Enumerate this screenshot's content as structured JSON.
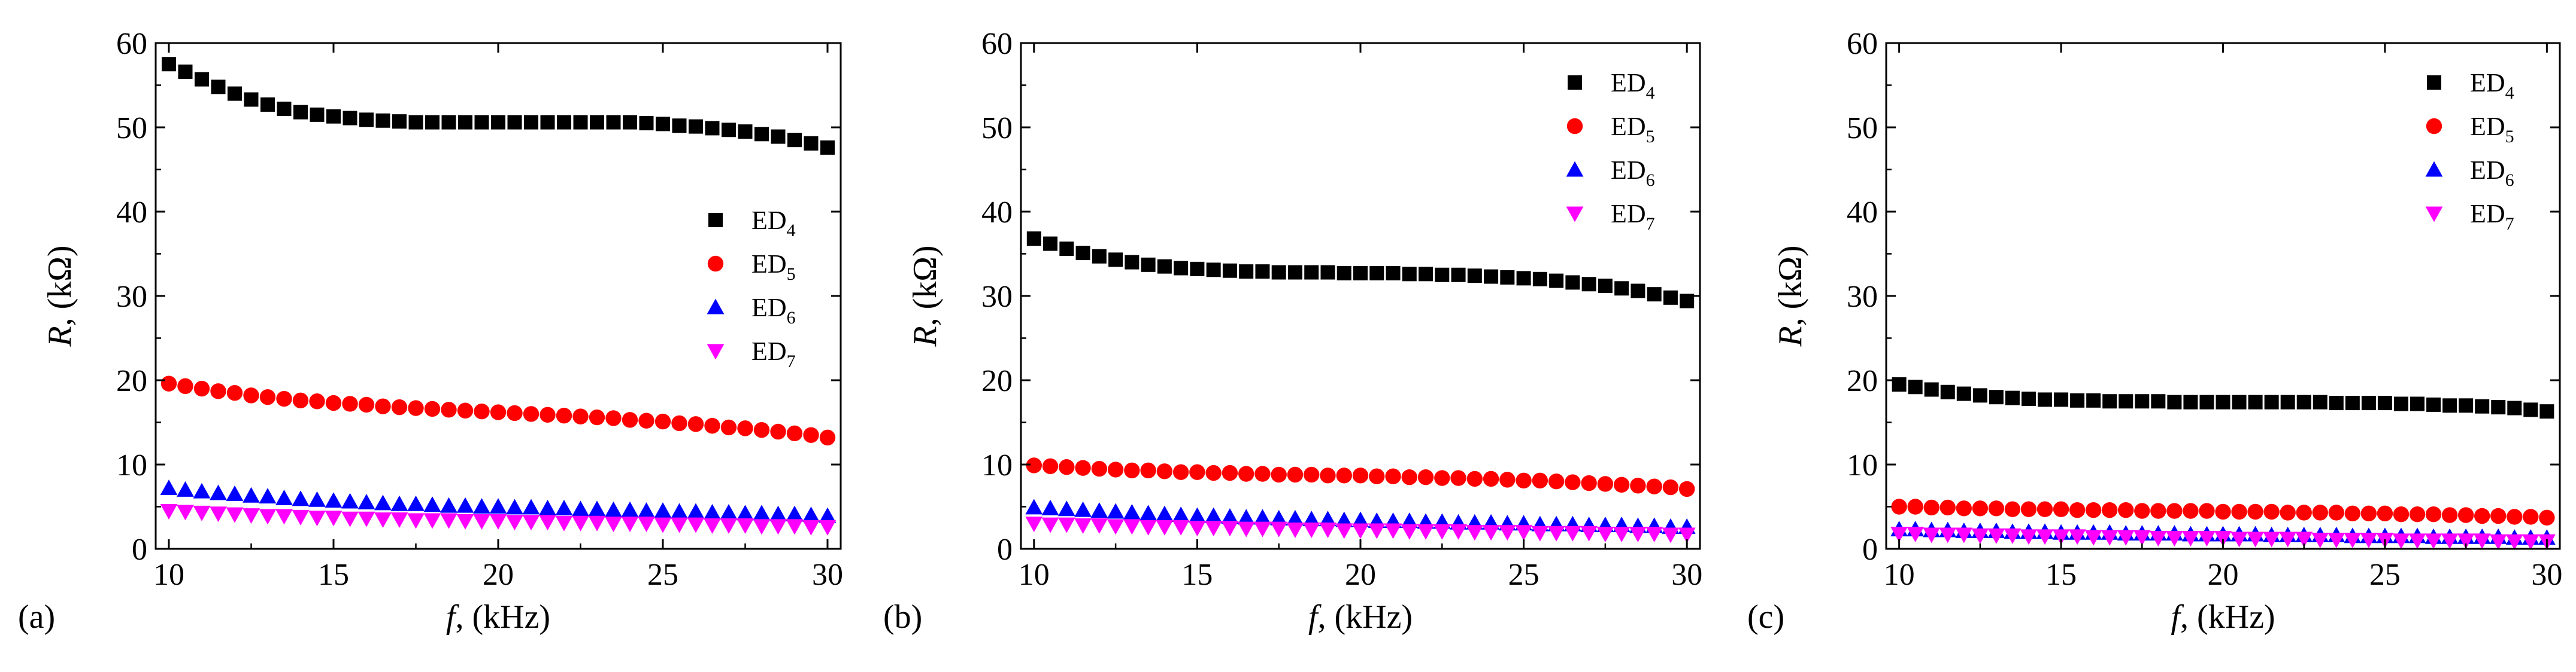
{
  "chart_data": [
    {
      "type": "scatter",
      "panel_label": "(a)",
      "xlabel": {
        "var": "f",
        "rest": ", (kHz)"
      },
      "ylabel": {
        "var": "R",
        "rest": ", (kΩ)"
      },
      "xlim": [
        9.6,
        30.4
      ],
      "ylim": [
        0,
        60
      ],
      "xticks": [
        10,
        15,
        20,
        25,
        30
      ],
      "yticks": [
        0,
        10,
        20,
        30,
        40,
        50,
        60
      ],
      "legend_position": "center-right",
      "x": [
        10,
        10.5,
        11,
        11.5,
        12,
        12.5,
        13,
        13.5,
        14,
        14.5,
        15,
        15.5,
        16,
        16.5,
        17,
        17.5,
        18,
        18.5,
        19,
        19.5,
        20,
        20.5,
        21,
        21.5,
        22,
        22.5,
        23,
        23.5,
        24,
        24.5,
        25,
        25.5,
        26,
        26.5,
        27,
        27.5,
        28,
        28.5,
        29,
        29.5,
        30
      ],
      "series": [
        {
          "name": "ED",
          "sub": "4",
          "marker": "square",
          "color": "#000000",
          "values": [
            57.5,
            56.6,
            55.7,
            54.8,
            54.0,
            53.3,
            52.7,
            52.2,
            51.8,
            51.5,
            51.3,
            51.1,
            50.9,
            50.8,
            50.7,
            50.6,
            50.6,
            50.6,
            50.6,
            50.6,
            50.6,
            50.6,
            50.6,
            50.6,
            50.6,
            50.6,
            50.6,
            50.6,
            50.6,
            50.5,
            50.4,
            50.2,
            50.1,
            49.9,
            49.7,
            49.5,
            49.2,
            48.9,
            48.5,
            48.1,
            47.6
          ]
        },
        {
          "name": "ED",
          "sub": "5",
          "marker": "circle",
          "color": "#ff0000",
          "values": [
            19.6,
            19.3,
            19.0,
            18.7,
            18.5,
            18.2,
            18.0,
            17.8,
            17.6,
            17.5,
            17.3,
            17.2,
            17.1,
            16.9,
            16.8,
            16.7,
            16.6,
            16.5,
            16.4,
            16.3,
            16.2,
            16.1,
            16.0,
            15.9,
            15.8,
            15.7,
            15.6,
            15.5,
            15.3,
            15.2,
            15.1,
            14.9,
            14.8,
            14.6,
            14.4,
            14.3,
            14.1,
            13.9,
            13.7,
            13.5,
            13.2
          ]
        },
        {
          "name": "ED",
          "sub": "6",
          "marker": "triangle-up",
          "color": "#0000ff",
          "values": [
            7.2,
            7.0,
            6.8,
            6.6,
            6.5,
            6.3,
            6.2,
            6.0,
            5.9,
            5.8,
            5.7,
            5.6,
            5.5,
            5.4,
            5.3,
            5.3,
            5.2,
            5.1,
            5.1,
            5.0,
            5.0,
            4.9,
            4.9,
            4.8,
            4.8,
            4.7,
            4.7,
            4.6,
            4.6,
            4.5,
            4.5,
            4.4,
            4.4,
            4.3,
            4.3,
            4.2,
            4.2,
            4.1,
            4.1,
            4.0,
            3.9
          ]
        },
        {
          "name": "ED",
          "sub": "7",
          "marker": "triangle-down",
          "color": "#ff00ff",
          "values": [
            4.5,
            4.4,
            4.3,
            4.2,
            4.1,
            4.0,
            3.9,
            3.9,
            3.8,
            3.7,
            3.7,
            3.6,
            3.6,
            3.5,
            3.5,
            3.4,
            3.4,
            3.4,
            3.3,
            3.3,
            3.3,
            3.2,
            3.2,
            3.2,
            3.1,
            3.1,
            3.1,
            3.0,
            3.0,
            3.0,
            2.9,
            2.9,
            2.9,
            2.8,
            2.8,
            2.8,
            2.7,
            2.7,
            2.7,
            2.6,
            2.6
          ]
        }
      ]
    },
    {
      "type": "scatter",
      "panel_label": "(b)",
      "xlabel": {
        "var": "f",
        "rest": ", (kHz)"
      },
      "ylabel": {
        "var": "R",
        "rest": ", (kΩ)"
      },
      "xlim": [
        9.6,
        30.4
      ],
      "ylim": [
        0,
        60
      ],
      "xticks": [
        10,
        15,
        20,
        25,
        30
      ],
      "yticks": [
        0,
        10,
        20,
        30,
        40,
        50,
        60
      ],
      "legend_position": "top-right",
      "x": [
        10,
        10.5,
        11,
        11.5,
        12,
        12.5,
        13,
        13.5,
        14,
        14.5,
        15,
        15.5,
        16,
        16.5,
        17,
        17.5,
        18,
        18.5,
        19,
        19.5,
        20,
        20.5,
        21,
        21.5,
        22,
        22.5,
        23,
        23.5,
        24,
        24.5,
        25,
        25.5,
        26,
        26.5,
        27,
        27.5,
        28,
        28.5,
        29,
        29.5,
        30
      ],
      "series": [
        {
          "name": "ED",
          "sub": "4",
          "marker": "square",
          "color": "#000000",
          "values": [
            36.8,
            36.2,
            35.6,
            35.1,
            34.7,
            34.3,
            34.0,
            33.7,
            33.5,
            33.3,
            33.2,
            33.1,
            33.0,
            32.9,
            32.9,
            32.8,
            32.8,
            32.8,
            32.8,
            32.7,
            32.7,
            32.7,
            32.7,
            32.6,
            32.6,
            32.5,
            32.5,
            32.4,
            32.3,
            32.2,
            32.1,
            32.0,
            31.8,
            31.6,
            31.4,
            31.2,
            30.9,
            30.6,
            30.2,
            29.8,
            29.4
          ]
        },
        {
          "name": "ED",
          "sub": "5",
          "marker": "circle",
          "color": "#ff0000",
          "values": [
            9.9,
            9.8,
            9.7,
            9.6,
            9.5,
            9.4,
            9.3,
            9.3,
            9.2,
            9.1,
            9.1,
            9.0,
            9.0,
            8.9,
            8.9,
            8.8,
            8.8,
            8.8,
            8.7,
            8.7,
            8.7,
            8.6,
            8.6,
            8.5,
            8.5,
            8.4,
            8.4,
            8.3,
            8.3,
            8.2,
            8.1,
            8.1,
            8.0,
            7.9,
            7.8,
            7.7,
            7.6,
            7.5,
            7.4,
            7.3,
            7.1
          ]
        },
        {
          "name": "ED",
          "sub": "6",
          "marker": "triangle-up",
          "color": "#0000ff",
          "values": [
            4.9,
            4.8,
            4.7,
            4.6,
            4.5,
            4.4,
            4.3,
            4.2,
            4.1,
            4.0,
            3.9,
            3.9,
            3.8,
            3.7,
            3.7,
            3.6,
            3.6,
            3.5,
            3.5,
            3.4,
            3.4,
            3.3,
            3.3,
            3.3,
            3.2,
            3.2,
            3.1,
            3.1,
            3.1,
            3.0,
            3.0,
            2.9,
            2.9,
            2.9,
            2.8,
            2.8,
            2.8,
            2.7,
            2.7,
            2.6,
            2.6
          ]
        },
        {
          "name": "ED",
          "sub": "7",
          "marker": "triangle-down",
          "color": "#ff00ff",
          "values": [
            3.0,
            2.9,
            2.9,
            2.8,
            2.8,
            2.7,
            2.7,
            2.6,
            2.6,
            2.6,
            2.5,
            2.5,
            2.5,
            2.4,
            2.4,
            2.4,
            2.3,
            2.3,
            2.3,
            2.2,
            2.2,
            2.2,
            2.2,
            2.1,
            2.1,
            2.1,
            2.1,
            2.0,
            2.0,
            2.0,
            2.0,
            1.9,
            1.9,
            1.9,
            1.9,
            1.8,
            1.8,
            1.8,
            1.8,
            1.7,
            1.7
          ]
        }
      ]
    },
    {
      "type": "scatter",
      "panel_label": "(c)",
      "xlabel": {
        "var": "f",
        "rest": ", (kHz)"
      },
      "ylabel": {
        "var": "R",
        "rest": ", (kΩ)"
      },
      "xlim": [
        9.6,
        30.4
      ],
      "ylim": [
        0,
        60
      ],
      "xticks": [
        10,
        15,
        20,
        25,
        30
      ],
      "yticks": [
        0,
        10,
        20,
        30,
        40,
        50,
        60
      ],
      "legend_position": "top-right",
      "x": [
        10,
        10.5,
        11,
        11.5,
        12,
        12.5,
        13,
        13.5,
        14,
        14.5,
        15,
        15.5,
        16,
        16.5,
        17,
        17.5,
        18,
        18.5,
        19,
        19.5,
        20,
        20.5,
        21,
        21.5,
        22,
        22.5,
        23,
        23.5,
        24,
        24.5,
        25,
        25.5,
        26,
        26.5,
        27,
        27.5,
        28,
        28.5,
        29,
        29.5,
        30
      ],
      "series": [
        {
          "name": "ED",
          "sub": "4",
          "marker": "square",
          "color": "#000000",
          "values": [
            19.5,
            19.2,
            18.9,
            18.6,
            18.4,
            18.2,
            18.0,
            17.9,
            17.8,
            17.7,
            17.7,
            17.6,
            17.6,
            17.5,
            17.5,
            17.5,
            17.5,
            17.4,
            17.4,
            17.4,
            17.4,
            17.4,
            17.4,
            17.4,
            17.4,
            17.4,
            17.4,
            17.3,
            17.3,
            17.3,
            17.3,
            17.2,
            17.2,
            17.1,
            17.0,
            17.0,
            16.9,
            16.8,
            16.7,
            16.5,
            16.3
          ]
        },
        {
          "name": "ED",
          "sub": "5",
          "marker": "circle",
          "color": "#ff0000",
          "values": [
            5.0,
            5.0,
            4.9,
            4.9,
            4.8,
            4.8,
            4.8,
            4.7,
            4.7,
            4.7,
            4.7,
            4.6,
            4.6,
            4.6,
            4.6,
            4.5,
            4.5,
            4.5,
            4.5,
            4.5,
            4.4,
            4.4,
            4.4,
            4.4,
            4.3,
            4.3,
            4.3,
            4.3,
            4.2,
            4.2,
            4.2,
            4.1,
            4.1,
            4.1,
            4.0,
            4.0,
            3.9,
            3.9,
            3.8,
            3.8,
            3.7
          ]
        },
        {
          "name": "ED",
          "sub": "6",
          "marker": "triangle-up",
          "color": "#0000ff",
          "values": [
            2.3,
            2.3,
            2.2,
            2.2,
            2.1,
            2.1,
            2.1,
            2.0,
            2.0,
            2.0,
            1.9,
            1.9,
            1.9,
            1.9,
            1.8,
            1.8,
            1.8,
            1.8,
            1.7,
            1.7,
            1.7,
            1.7,
            1.7,
            1.6,
            1.6,
            1.6,
            1.6,
            1.6,
            1.5,
            1.5,
            1.5,
            1.5,
            1.5,
            1.4,
            1.4,
            1.4,
            1.4,
            1.4,
            1.3,
            1.3,
            1.3
          ]
        },
        {
          "name": "ED",
          "sub": "7",
          "marker": "triangle-down",
          "color": "#ff00ff",
          "values": [
            1.8,
            1.8,
            1.7,
            1.7,
            1.7,
            1.6,
            1.6,
            1.6,
            1.5,
            1.5,
            1.5,
            1.5,
            1.4,
            1.4,
            1.4,
            1.4,
            1.3,
            1.3,
            1.3,
            1.3,
            1.3,
            1.2,
            1.2,
            1.2,
            1.2,
            1.2,
            1.1,
            1.1,
            1.1,
            1.1,
            1.1,
            1.0,
            1.0,
            1.0,
            1.0,
            1.0,
            1.0,
            0.9,
            0.9,
            0.9,
            0.9
          ]
        }
      ]
    }
  ]
}
